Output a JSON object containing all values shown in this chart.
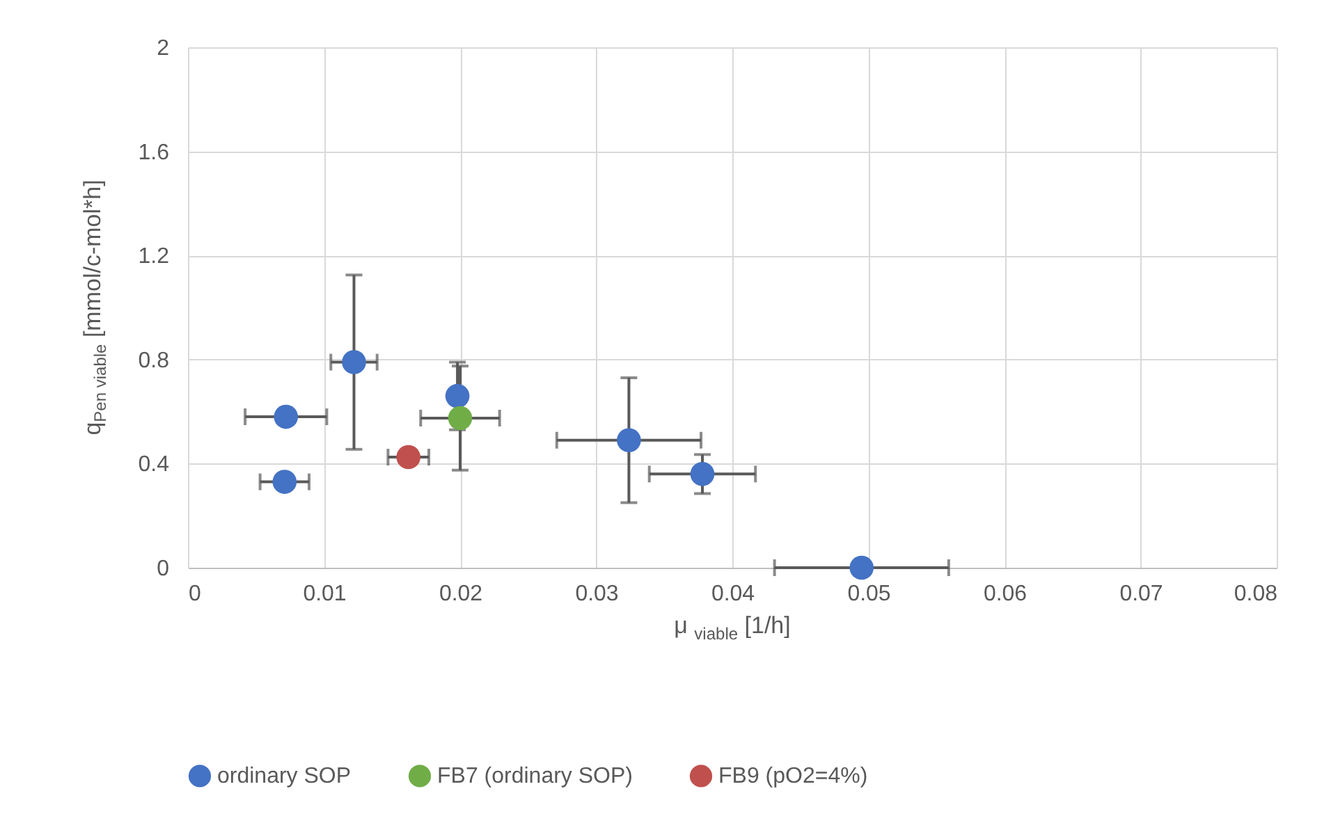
{
  "chart_data": {
    "type": "scatter",
    "xlabel": "μ $_{viable}$  [1/h]",
    "ylabel": "q$_{Pen viable}$ [mmol/c-mol*h]",
    "xlim": [
      0,
      0.08
    ],
    "xticks": [
      0,
      0.01,
      0.02,
      0.03,
      0.04,
      0.05,
      0.06,
      0.07,
      0.08
    ],
    "ylim": [
      0,
      2
    ],
    "yticks": [
      0,
      0.4,
      0.8,
      1.2,
      1.6,
      2
    ],
    "grid": true,
    "legend": "bottom",
    "marker": "circle",
    "series": [
      {
        "name": "ordinary SOP",
        "color": "#4472c4",
        "x": [
          0.0072,
          0.0071,
          0.0122,
          0.0198,
          0.0324,
          0.0378,
          0.0495
        ],
        "values": [
          0.58,
          0.33,
          0.79,
          0.66,
          0.49,
          0.36,
          0
        ],
        "errors": [
          null,
          null,
          0.335,
          0.13,
          0.24,
          0.075,
          null
        ],
        "xerrors": [
          0.003,
          0.0018,
          0.0017,
          null,
          0.0053,
          0.0039,
          0.0064
        ]
      },
      {
        "name": "FB7 (ordinary SOP)",
        "color": "#70ad47",
        "x": [
          0.02
        ],
        "values": [
          0.575
        ],
        "errors": [
          0.2
        ],
        "xerrors": [
          0.0029
        ]
      },
      {
        "name": "FB9 (pO2=4%)",
        "color": "#c0504d",
        "x": [
          0.0162
        ],
        "values": [
          0.425
        ],
        "errors": [
          null
        ],
        "xerrors": [
          0.0015
        ]
      }
    ]
  }
}
